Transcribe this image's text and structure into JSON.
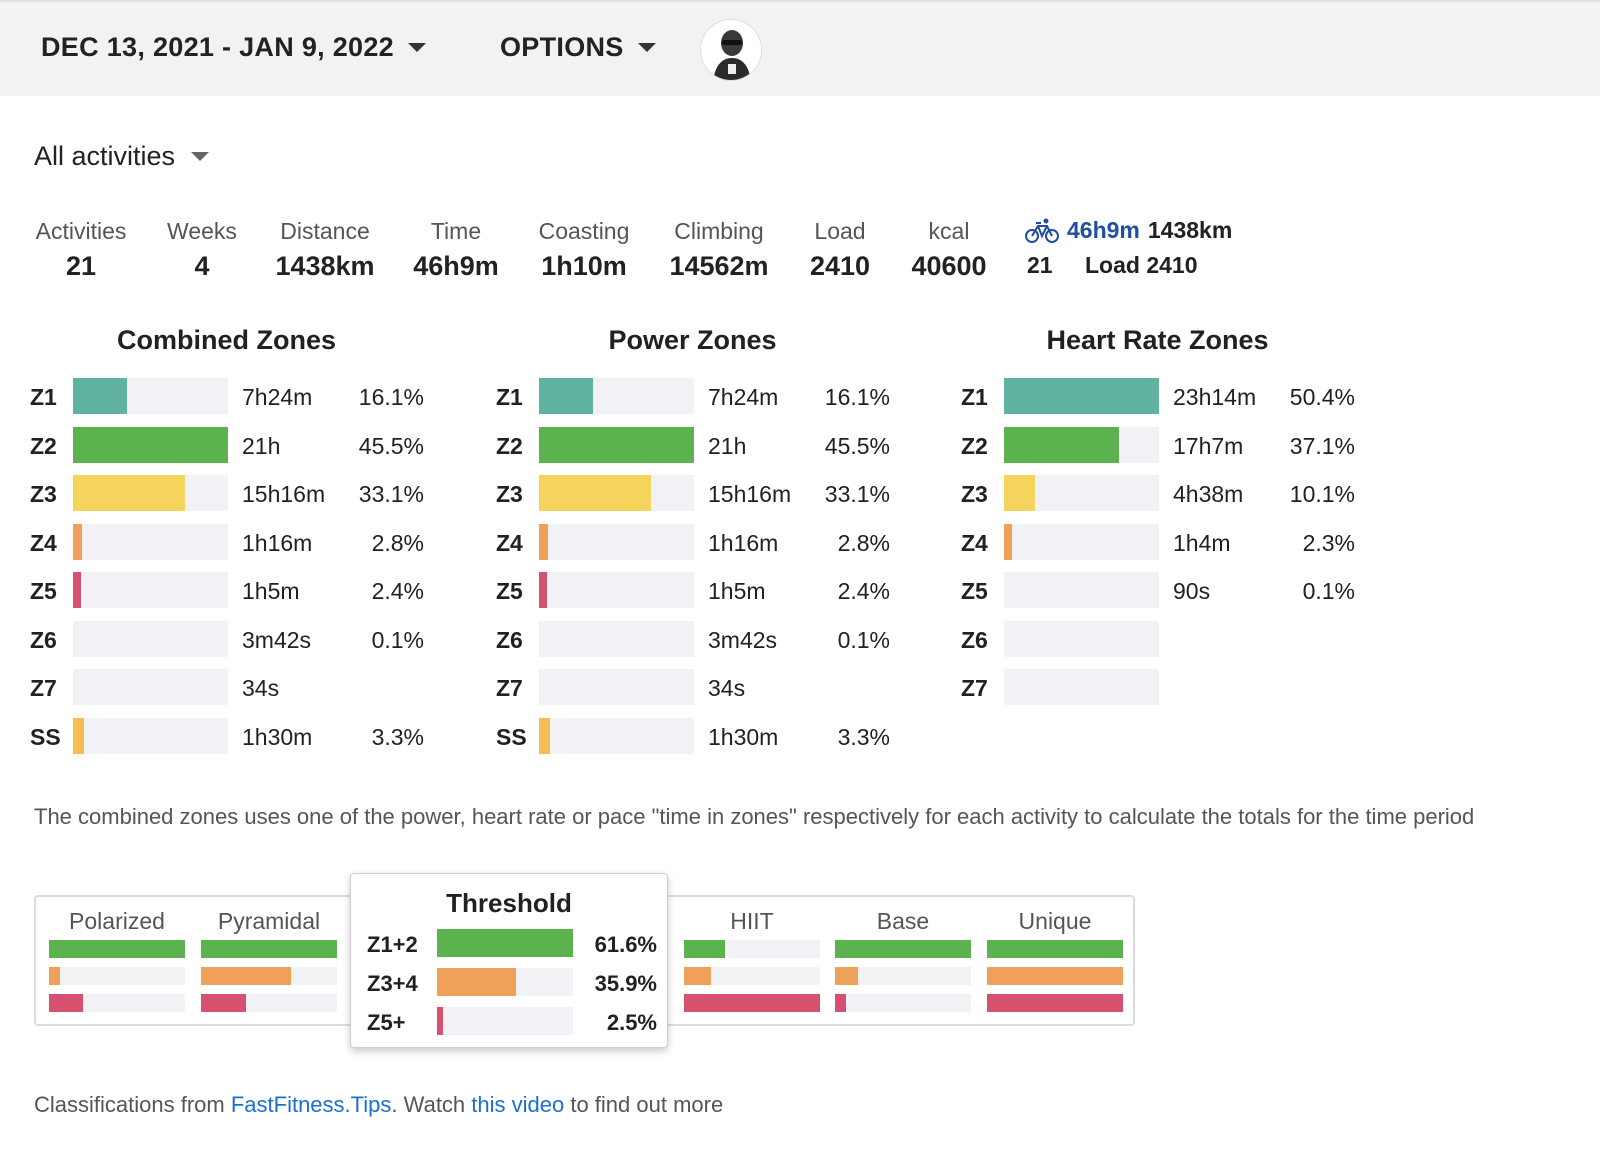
{
  "header": {
    "date_range": "DEC 13, 2021 - JAN 9, 2022",
    "options_label": "OPTIONS"
  },
  "filter": {
    "activity_type": "All activities"
  },
  "stats": [
    {
      "label": "Activities",
      "value": "21"
    },
    {
      "label": "Weeks",
      "value": "4"
    },
    {
      "label": "Distance",
      "value": "1438km"
    },
    {
      "label": "Time",
      "value": "46h9m"
    },
    {
      "label": "Coasting",
      "value": "1h10m"
    },
    {
      "label": "Climbing",
      "value": "14562m"
    },
    {
      "label": "Load",
      "value": "2410"
    },
    {
      "label": "kcal",
      "value": "40600"
    }
  ],
  "ride_summary": {
    "time": "46h9m",
    "distance": "1438km",
    "count": "21",
    "load": "Load 2410",
    "icon": "bicycle-icon"
  },
  "colors": {
    "z1": "#5fb39f",
    "z2": "#5cb24e",
    "z3": "#f5d45c",
    "z4": "#f0a058",
    "z5": "#d6506f",
    "ss": "#f5bd52",
    "track": "#f2f2f6",
    "link": "#1a6fd0"
  },
  "zones": {
    "combined": {
      "title": "Combined Zones",
      "rows": [
        {
          "zone": "Z1",
          "time": "7h24m",
          "pct": "16.1%",
          "fill": 0.35,
          "color": "z1"
        },
        {
          "zone": "Z2",
          "time": "21h",
          "pct": "45.5%",
          "fill": 1.0,
          "color": "z2"
        },
        {
          "zone": "Z3",
          "time": "15h16m",
          "pct": "33.1%",
          "fill": 0.72,
          "color": "z3"
        },
        {
          "zone": "Z4",
          "time": "1h16m",
          "pct": "2.8%",
          "fill": 0.06,
          "color": "z4"
        },
        {
          "zone": "Z5",
          "time": "1h5m",
          "pct": "2.4%",
          "fill": 0.05,
          "color": "z5"
        },
        {
          "zone": "Z6",
          "time": "3m42s",
          "pct": "0.1%",
          "fill": 0.0,
          "color": "z5"
        },
        {
          "zone": "Z7",
          "time": "34s",
          "pct": "",
          "fill": 0.0,
          "color": "z5"
        },
        {
          "zone": "SS",
          "time": "1h30m",
          "pct": "3.3%",
          "fill": 0.07,
          "color": "ss"
        }
      ]
    },
    "power": {
      "title": "Power Zones",
      "rows": [
        {
          "zone": "Z1",
          "time": "7h24m",
          "pct": "16.1%",
          "fill": 0.35,
          "color": "z1"
        },
        {
          "zone": "Z2",
          "time": "21h",
          "pct": "45.5%",
          "fill": 1.0,
          "color": "z2"
        },
        {
          "zone": "Z3",
          "time": "15h16m",
          "pct": "33.1%",
          "fill": 0.72,
          "color": "z3"
        },
        {
          "zone": "Z4",
          "time": "1h16m",
          "pct": "2.8%",
          "fill": 0.06,
          "color": "z4"
        },
        {
          "zone": "Z5",
          "time": "1h5m",
          "pct": "2.4%",
          "fill": 0.05,
          "color": "z5"
        },
        {
          "zone": "Z6",
          "time": "3m42s",
          "pct": "0.1%",
          "fill": 0.0,
          "color": "z5"
        },
        {
          "zone": "Z7",
          "time": "34s",
          "pct": "",
          "fill": 0.0,
          "color": "z5"
        },
        {
          "zone": "SS",
          "time": "1h30m",
          "pct": "3.3%",
          "fill": 0.07,
          "color": "ss"
        }
      ]
    },
    "heart_rate": {
      "title": "Heart Rate Zones",
      "rows": [
        {
          "zone": "Z1",
          "time": "23h14m",
          "pct": "50.4%",
          "fill": 1.0,
          "color": "z1"
        },
        {
          "zone": "Z2",
          "time": "17h7m",
          "pct": "37.1%",
          "fill": 0.74,
          "color": "z2"
        },
        {
          "zone": "Z3",
          "time": "4h38m",
          "pct": "10.1%",
          "fill": 0.2,
          "color": "z3"
        },
        {
          "zone": "Z4",
          "time": "1h4m",
          "pct": "2.3%",
          "fill": 0.05,
          "color": "z4"
        },
        {
          "zone": "Z5",
          "time": "90s",
          "pct": "0.1%",
          "fill": 0.0,
          "color": "z5"
        },
        {
          "zone": "Z6",
          "time": "",
          "pct": "",
          "fill": 0.0,
          "color": "z5"
        },
        {
          "zone": "Z7",
          "time": "",
          "pct": "",
          "fill": 0.0,
          "color": "z5"
        }
      ]
    }
  },
  "note": "The combined zones uses one of the power, heart rate or pace \"time in zones\" respectively for each activity to calculate the totals for the time period",
  "classifications": [
    {
      "name": "Polarized",
      "bars": [
        1.0,
        0.08,
        0.25
      ]
    },
    {
      "name": "Pyramidal",
      "bars": [
        1.0,
        0.66,
        0.33
      ]
    },
    {
      "name": "Threshold",
      "bars": [
        1.0,
        0.58,
        0.04
      ]
    },
    {
      "name": "HIIT",
      "bars": [
        0.3,
        0.2,
        1.0
      ]
    },
    {
      "name": "Base",
      "bars": [
        1.0,
        0.17,
        0.08
      ]
    },
    {
      "name": "Unique",
      "bars": [
        1.0,
        1.0,
        1.0
      ]
    }
  ],
  "threshold_popup": {
    "title": "Threshold",
    "rows": [
      {
        "label": "Z1+2",
        "pct": "61.6%",
        "fill": 1.0,
        "color": "z2"
      },
      {
        "label": "Z3+4",
        "pct": "35.9%",
        "fill": 0.58,
        "color": "z4"
      },
      {
        "label": "Z5+",
        "pct": "2.5%",
        "fill": 0.04,
        "color": "z5"
      }
    ]
  },
  "footer": {
    "prefix": "Classifications from ",
    "link1": "FastFitness.Tips",
    "middle": ". Watch ",
    "link2": "this video",
    "suffix": " to find out more"
  }
}
